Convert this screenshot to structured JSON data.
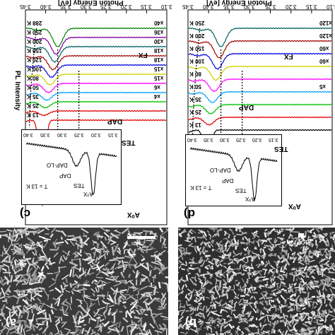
{
  "figure": {
    "y_axis_label": "PL Intensity",
    "x_axis_label": "Photon Energy [eV]"
  },
  "chart_data": [
    {
      "type": "line",
      "panel": "c)",
      "xlabel": "Photon Energy [eV]",
      "ylabel": "PL Intensity",
      "xlim": [
        3.1,
        3.45
      ],
      "x_ticks": [
        "3.10",
        "3.15",
        "3.20",
        "3.25",
        "3.30",
        "3.35",
        "3.40",
        "3.45"
      ],
      "series": [
        {
          "name": "13 K",
          "multiplier": "",
          "color": "#e00000"
        },
        {
          "name": "25 K",
          "multiplier": "",
          "color": "#e00000"
        },
        {
          "name": "35 K",
          "multiplier": "x4",
          "color": "#00c000"
        },
        {
          "name": "50 K",
          "multiplier": "x6",
          "color": "#00a0ff"
        },
        {
          "name": "80 K",
          "multiplier": "x15",
          "color": "#ff00ff"
        },
        {
          "name": "100 K",
          "multiplier": "x15",
          "color": "#d0d000"
        },
        {
          "name": "120 K",
          "multiplier": "x18",
          "color": "#0000e0"
        },
        {
          "name": "150 K",
          "multiplier": "x18",
          "color": "#a00000"
        },
        {
          "name": "200 K",
          "multiplier": "x30",
          "color": "#006060"
        },
        {
          "name": "250 K",
          "multiplier": "x36",
          "color": "#8000a0"
        },
        {
          "name": "288 K",
          "multiplier": "x40",
          "color": "#008000"
        }
      ],
      "peak_labels": [
        "DAP",
        "TES",
        "FX",
        "A⁰X"
      ],
      "inset": {
        "temperature": "T = 13 K",
        "labels": [
          "DAP-LO",
          "DAP",
          "TES",
          "A⁰X"
        ],
        "x_ticks": [
          "3.15",
          "3.20",
          "3.25",
          "3.30",
          "3.35",
          "3.40"
        ]
      }
    },
    {
      "type": "line",
      "panel": "d)",
      "xlabel": "Photon Energy [eV]",
      "ylabel": "PL Intensity",
      "xlim": [
        3.1,
        3.45
      ],
      "x_ticks": [
        "3.10",
        "3.15",
        "3.20",
        "3.25",
        "3.30",
        "3.35",
        "3.40",
        "3.45"
      ],
      "series": [
        {
          "name": "13 K",
          "multiplier": "",
          "color": "#000000"
        },
        {
          "name": "25 K",
          "multiplier": "",
          "color": "#e00000"
        },
        {
          "name": "35 K",
          "multiplier": "",
          "color": "#00c000"
        },
        {
          "name": "50 K",
          "multiplier": "x5",
          "color": "#00a0ff"
        },
        {
          "name": "80 K",
          "multiplier": "",
          "color": "#ff00ff"
        },
        {
          "name": "100 K",
          "multiplier": "x60",
          "color": "#d0d000"
        },
        {
          "name": "150 K",
          "multiplier": "x60",
          "color": "#0000e0"
        },
        {
          "name": "200 K",
          "multiplier": "x120",
          "color": "#a00000"
        },
        {
          "name": "250 K",
          "multiplier": "x120",
          "color": "#006060"
        }
      ],
      "peak_labels": [
        "DAP",
        "TES",
        "FX",
        "A⁰X"
      ],
      "inset": {
        "temperature": "T = 13 K",
        "labels": [
          "DAP-LO",
          "DAP",
          "TES",
          "A⁰X"
        ],
        "x_ticks": [
          "3.15",
          "3.20",
          "3.25",
          "3.30",
          "3.35",
          "3.40"
        ]
      }
    }
  ],
  "sem": [
    {
      "panel": "a)",
      "scale": "2 μm"
    },
    {
      "panel": "b)",
      "scale": "100 nm"
    }
  ]
}
